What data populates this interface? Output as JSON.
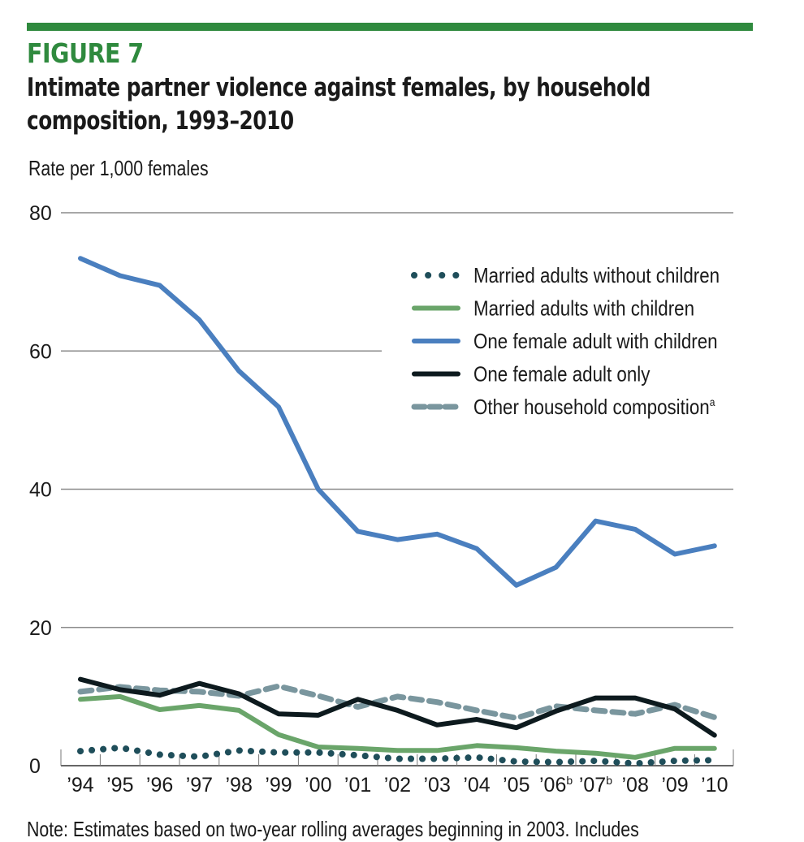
{
  "figure": {
    "label": "FIGURE 7",
    "title_line1": "Intimate partner violence against females, by household",
    "title_line2": "composition, 1993–2010",
    "accent_color": "#2f8a3e",
    "note": "Note: Estimates based on two-year rolling averages beginning in 2003. Includes"
  },
  "chart_data": {
    "type": "line",
    "title": "Intimate partner violence against females, by household composition, 1993–2010",
    "xlabel": "",
    "ylabel": "Rate per 1,000 females",
    "ylim": [
      0,
      80
    ],
    "yticks": [
      0,
      20,
      40,
      60,
      80
    ],
    "ytick_labels": [
      "0",
      "20",
      "40",
      "60",
      "80"
    ],
    "grid": true,
    "legend_position": "top-right",
    "categories": [
      "’94",
      "’95",
      "’96",
      "’97",
      "’98",
      "’99",
      "’00",
      "’01",
      "’02",
      "’03",
      "’04",
      "’05",
      "’06",
      "’07",
      "’08",
      "’09",
      "’10"
    ],
    "category_superscripts": [
      "",
      "",
      "",
      "",
      "",
      "",
      "",
      "",
      "",
      "",
      "",
      "",
      "b",
      "b",
      "",
      "",
      ""
    ],
    "series": [
      {
        "name": "Married adults without children",
        "superscript": "",
        "style": "dotted",
        "color": "#1f4e5a",
        "values": [
          2.1,
          2.6,
          1.6,
          1.3,
          2.2,
          1.9,
          1.9,
          1.5,
          1.0,
          1.0,
          1.2,
          0.6,
          0.5,
          0.7,
          0.3,
          0.7,
          0.8
        ]
      },
      {
        "name": "Married adults with children",
        "superscript": "",
        "style": "solid",
        "color": "#6aa56a",
        "values": [
          9.6,
          10.0,
          8.1,
          8.7,
          8.0,
          4.5,
          2.7,
          2.5,
          2.2,
          2.2,
          2.9,
          2.6,
          2.1,
          1.8,
          1.2,
          2.5,
          2.5
        ]
      },
      {
        "name": "One female adult with children",
        "superscript": "",
        "style": "solid",
        "color": "#4a7fbf",
        "values": [
          73.4,
          70.9,
          69.5,
          64.5,
          57.1,
          51.9,
          40.0,
          33.9,
          32.7,
          33.5,
          31.4,
          26.1,
          28.7,
          35.4,
          34.2,
          30.6,
          31.8
        ]
      },
      {
        "name": "One female adult only",
        "superscript": "",
        "style": "solid",
        "color": "#0d1a1e",
        "values": [
          12.5,
          11.0,
          10.2,
          11.9,
          10.4,
          7.5,
          7.3,
          9.6,
          8.0,
          5.9,
          6.7,
          5.5,
          7.9,
          9.8,
          9.8,
          8.2,
          4.4
        ]
      },
      {
        "name": "Other household composition",
        "superscript": "a",
        "style": "dashed",
        "color": "#7a969e",
        "values": [
          10.7,
          11.4,
          10.9,
          10.7,
          10.1,
          11.5,
          10.1,
          8.5,
          10.0,
          9.2,
          8.0,
          6.9,
          8.6,
          8.0,
          7.5,
          8.8,
          7.0
        ]
      }
    ]
  }
}
